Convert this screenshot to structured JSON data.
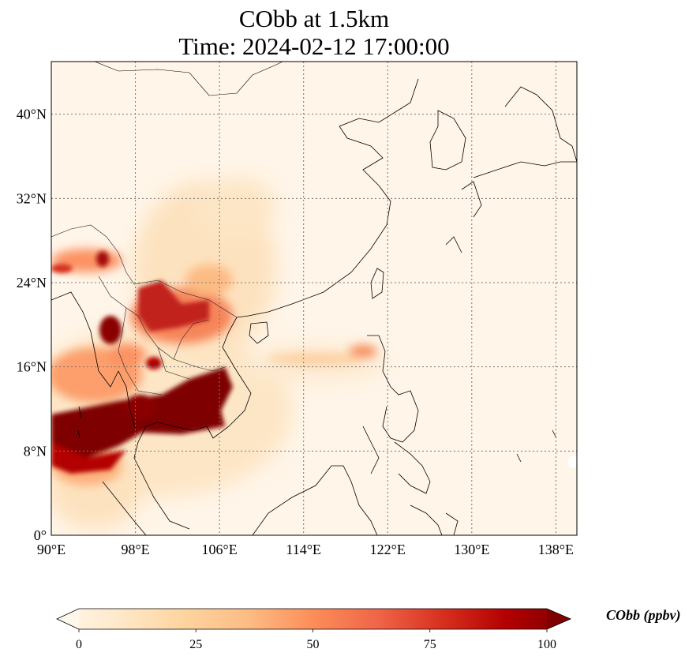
{
  "title": {
    "line1": "CObb at 1.5km",
    "line2": "Time: 2024-02-12 17:00:00"
  },
  "map": {
    "projection": "PlateCarree",
    "lon_range": [
      90,
      140
    ],
    "lat_range": [
      0,
      45
    ],
    "gridlines": "dotted",
    "coastlines": true,
    "borders": true,
    "x_ticks": [
      "90°E",
      "98°E",
      "106°E",
      "114°E",
      "122°E",
      "130°E",
      "138°E"
    ],
    "y_ticks": [
      "0°",
      "8°N",
      "16°N",
      "24°N",
      "32°N",
      "40°N"
    ],
    "x_tick_values": [
      90,
      98,
      106,
      114,
      122,
      130,
      138
    ],
    "y_tick_values": [
      0,
      8,
      16,
      24,
      32,
      40
    ]
  },
  "field": {
    "variable": "CObb",
    "colormap": "OrRd",
    "colors": [
      "#fff7ec",
      "#fee8c8",
      "#fdd49e",
      "#fdbb84",
      "#fc8d59",
      "#ef6548",
      "#d7301f",
      "#b30000",
      "#7f0000"
    ],
    "high_regions": [
      {
        "name": "gulf-of-thailand-plume",
        "lon": [
          90,
          107
        ],
        "lat": [
          8.5,
          12.5
        ],
        "level": 100
      },
      {
        "name": "cambodia-plume",
        "lon": [
          101,
          107
        ],
        "lat": [
          12,
          15.5
        ],
        "level": 95
      },
      {
        "name": "myanmar-core",
        "lon": [
          95,
          96.5
        ],
        "lat": [
          18,
          20
        ],
        "level": 95
      },
      {
        "name": "laos-band",
        "lon": [
          98,
          106
        ],
        "lat": [
          18,
          23
        ],
        "level": 70
      },
      {
        "name": "yunnan-patch",
        "lon": [
          94,
          96
        ],
        "lat": [
          25,
          27
        ],
        "level": 75
      },
      {
        "name": "luzon-spot",
        "lon": [
          119,
          120.5
        ],
        "lat": [
          17,
          18
        ],
        "level": 55
      }
    ]
  },
  "colorbar": {
    "label": "CObb (ppbv)",
    "ticks": [
      "0",
      "25",
      "50",
      "75",
      "100"
    ],
    "tick_values": [
      0,
      25,
      50,
      75,
      100
    ],
    "min": 0,
    "max": 100,
    "extend": "both"
  }
}
